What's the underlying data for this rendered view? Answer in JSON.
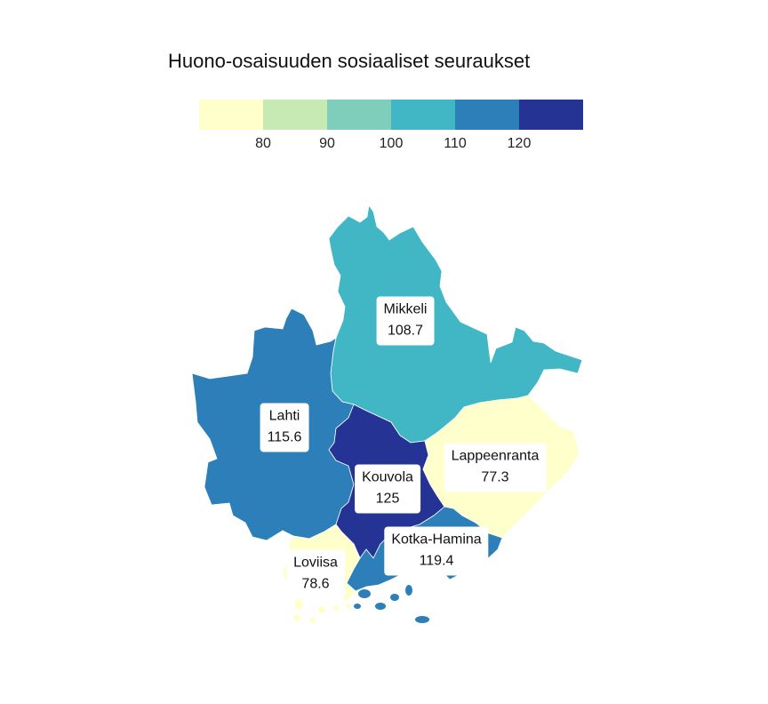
{
  "title": "Huono-osaisuuden sosiaaliset seuraukset",
  "legend": {
    "bins": [
      {
        "color": "#ffffcc"
      },
      {
        "color": "#c7e9b4"
      },
      {
        "color": "#7fcdbb"
      },
      {
        "color": "#41b6c4"
      },
      {
        "color": "#2c7fb8"
      },
      {
        "color": "#253494"
      }
    ],
    "ticks": [
      "80",
      "90",
      "100",
      "110",
      "120"
    ]
  },
  "regions": [
    {
      "name": "Mikkeli",
      "value": "108.7",
      "color": "#41b6c4"
    },
    {
      "name": "Lahti",
      "value": "115.6",
      "color": "#2c7fb8"
    },
    {
      "name": "Kouvola",
      "value": "125",
      "color": "#253494"
    },
    {
      "name": "Lappeenranta",
      "value": "77.3",
      "color": "#ffffcc"
    },
    {
      "name": "Kotka-Hamina",
      "value": "119.4",
      "color": "#2c7fb8"
    },
    {
      "name": "Loviisa",
      "value": "78.6",
      "color": "#ffffcc"
    }
  ]
}
